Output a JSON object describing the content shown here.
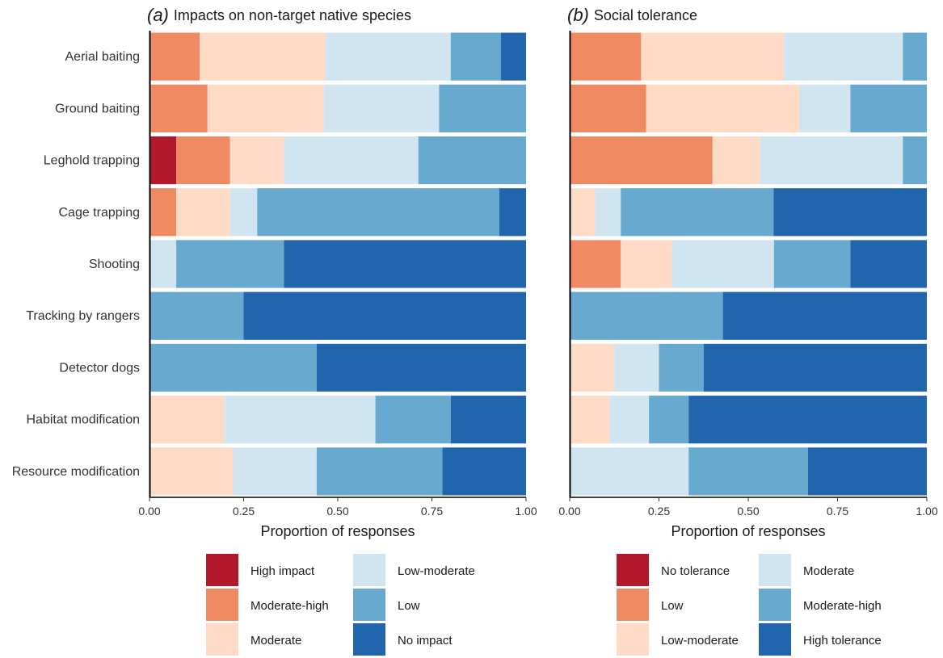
{
  "colors": [
    "#B2182B",
    "#EF8A62",
    "#FDDBC7",
    "#D1E5F0",
    "#67A9CF",
    "#2166AC"
  ],
  "chart_data": [
    {
      "type": "bar",
      "orientation": "horizontal",
      "stacked": true,
      "panel_letter": "(a)",
      "title": "Impacts on non-target native species",
      "xlabel": "Proportion of responses",
      "ylabel": "",
      "xlim": [
        0,
        1
      ],
      "ticks": [
        "0.00",
        "0.25",
        "0.50",
        "0.75",
        "1.00"
      ],
      "categories": [
        "Aerial baiting",
        "Ground baiting",
        "Leghold trapping",
        "Cage trapping",
        "Shooting",
        "Tracking by rangers",
        "Detector dogs",
        "Habitat modification",
        "Resource modification"
      ],
      "series": [
        {
          "name": "High impact",
          "values": [
            0,
            0,
            0.071,
            0,
            0,
            0,
            0,
            0,
            0
          ]
        },
        {
          "name": "Moderate-high",
          "values": [
            0.133,
            0.154,
            0.143,
            0.071,
            0,
            0,
            0,
            0,
            0
          ]
        },
        {
          "name": "Moderate",
          "values": [
            0.334,
            0.308,
            0.143,
            0.143,
            0,
            0,
            0,
            0.2,
            0.222
          ]
        },
        {
          "name": "Low-moderate",
          "values": [
            0.333,
            0.307,
            0.357,
            0.072,
            0.071,
            0,
            0,
            0.4,
            0.222
          ]
        },
        {
          "name": "Low",
          "values": [
            0.133,
            0.231,
            0.286,
            0.643,
            0.286,
            0.25,
            0.444,
            0.2,
            0.334
          ]
        },
        {
          "name": "No impact",
          "values": [
            0.067,
            0,
            0,
            0.071,
            0.643,
            0.75,
            0.556,
            0.2,
            0.222
          ]
        }
      ],
      "legend": {
        "position": "bottom",
        "entries": [
          "High impact",
          "Moderate-high",
          "Moderate",
          "Low-moderate",
          "Low",
          "No impact"
        ]
      }
    },
    {
      "type": "bar",
      "orientation": "horizontal",
      "stacked": true,
      "panel_letter": "(b)",
      "title": "Social tolerance",
      "xlabel": "Proportion of responses",
      "ylabel": "",
      "xlim": [
        0,
        1
      ],
      "ticks": [
        "0.00",
        "0.25",
        "0.50",
        "0.75",
        "1.00"
      ],
      "categories": [
        "Aerial baiting",
        "Ground baiting",
        "Leghold trapping",
        "Cage trapping",
        "Shooting",
        "Tracking by rangers",
        "Detector dogs",
        "Habitat modification",
        "Resource modification"
      ],
      "series": [
        {
          "name": "No tolerance",
          "values": [
            0,
            0,
            0,
            0,
            0,
            0,
            0,
            0,
            0
          ]
        },
        {
          "name": "Low",
          "values": [
            0.2,
            0.214,
            0.4,
            0,
            0.143,
            0,
            0,
            0,
            0
          ]
        },
        {
          "name": "Low-moderate",
          "values": [
            0.4,
            0.429,
            0.133,
            0.071,
            0.143,
            0,
            0.125,
            0.111,
            0
          ]
        },
        {
          "name": "Moderate",
          "values": [
            0.333,
            0.143,
            0.4,
            0.072,
            0.286,
            0,
            0.125,
            0.111,
            0.333
          ]
        },
        {
          "name": "Moderate-high",
          "values": [
            0.067,
            0.214,
            0.067,
            0.428,
            0.214,
            0.429,
            0.125,
            0.111,
            0.334
          ]
        },
        {
          "name": "High tolerance",
          "values": [
            0,
            0,
            0,
            0.429,
            0.214,
            0.571,
            0.625,
            0.667,
            0.333
          ]
        }
      ],
      "legend": {
        "position": "bottom",
        "entries": [
          "No tolerance",
          "Low",
          "Low-moderate",
          "Moderate",
          "Moderate-high",
          "High tolerance"
        ]
      }
    }
  ]
}
